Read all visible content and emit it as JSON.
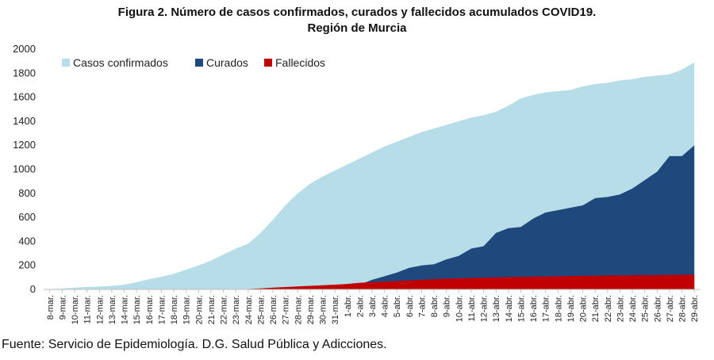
{
  "chart_data": {
    "type": "area",
    "title": "Figura 2. Número de casos confirmados, curados y fallecidos acumulados COVID19.",
    "subtitle": "Región de Murcia",
    "source": "Fuente: Servicio de Epidemiología. D.G. Salud Pública y Adicciones.",
    "x": [
      "8-mar.",
      "9-mar.",
      "10-mar.",
      "11-mar.",
      "12-mar.",
      "13-mar.",
      "14-mar.",
      "15-mar.",
      "16-mar.",
      "17-mar.",
      "18-mar.",
      "19-mar.",
      "20-mar.",
      "21-mar.",
      "22-mar.",
      "23-mar.",
      "24-mar.",
      "25-mar.",
      "26-mar.",
      "27-mar.",
      "28-mar.",
      "29-mar.",
      "30-mar.",
      "31-mar.",
      "1-abr.",
      "2-abr.",
      "3-abr.",
      "4-abr.",
      "5-abr.",
      "6-abr.",
      "7-abr.",
      "8-abr.",
      "9-abr.",
      "10-abr.",
      "11-abr.",
      "12-abr.",
      "13-abr.",
      "14-abr.",
      "15-abr.",
      "16-abr.",
      "17-abr.",
      "18-abr.",
      "19-abr.",
      "20-abr.",
      "21-abr.",
      "22-abr.",
      "23-abr.",
      "24-abr.",
      "25-abr.",
      "26-abr.",
      "27-abr.",
      "28-abr.",
      "29-abr."
    ],
    "ylim": [
      0,
      2000
    ],
    "yticks": [
      0,
      200,
      400,
      600,
      800,
      1000,
      1200,
      1400,
      1600,
      1800,
      2000
    ],
    "legend_position": "top-left",
    "grid": false,
    "series": [
      {
        "name": "Casos confirmados",
        "color": "#b7dde8",
        "values": [
          3,
          7,
          15,
          20,
          24,
          30,
          40,
          60,
          85,
          105,
          130,
          165,
          200,
          240,
          290,
          340,
          380,
          470,
          580,
          700,
          800,
          880,
          940,
          990,
          1040,
          1090,
          1140,
          1190,
          1230,
          1270,
          1310,
          1340,
          1370,
          1400,
          1430,
          1450,
          1480,
          1530,
          1590,
          1620,
          1640,
          1650,
          1660,
          1690,
          1710,
          1720,
          1740,
          1750,
          1770,
          1780,
          1790,
          1830,
          1890
        ]
      },
      {
        "name": "Curados",
        "color": "#1f497d",
        "values": [
          0,
          0,
          0,
          0,
          0,
          0,
          0,
          0,
          0,
          0,
          0,
          0,
          0,
          0,
          0,
          0,
          0,
          0,
          0,
          0,
          0,
          0,
          0,
          0,
          0,
          40,
          80,
          110,
          140,
          180,
          200,
          210,
          250,
          280,
          340,
          360,
          470,
          510,
          520,
          590,
          640,
          660,
          680,
          700,
          760,
          770,
          790,
          840,
          910,
          980,
          1110,
          1110,
          1200
        ]
      },
      {
        "name": "Fallecidos",
        "color": "#c00000",
        "values": [
          0,
          0,
          0,
          0,
          0,
          0,
          0,
          0,
          0,
          0,
          0,
          0,
          0,
          0,
          0,
          0,
          3,
          8,
          15,
          20,
          25,
          30,
          35,
          40,
          45,
          55,
          60,
          65,
          70,
          75,
          80,
          85,
          90,
          92,
          95,
          98,
          100,
          103,
          105,
          107,
          108,
          110,
          111,
          113,
          115,
          116,
          117,
          118,
          119,
          120,
          121,
          122,
          123
        ]
      }
    ]
  }
}
